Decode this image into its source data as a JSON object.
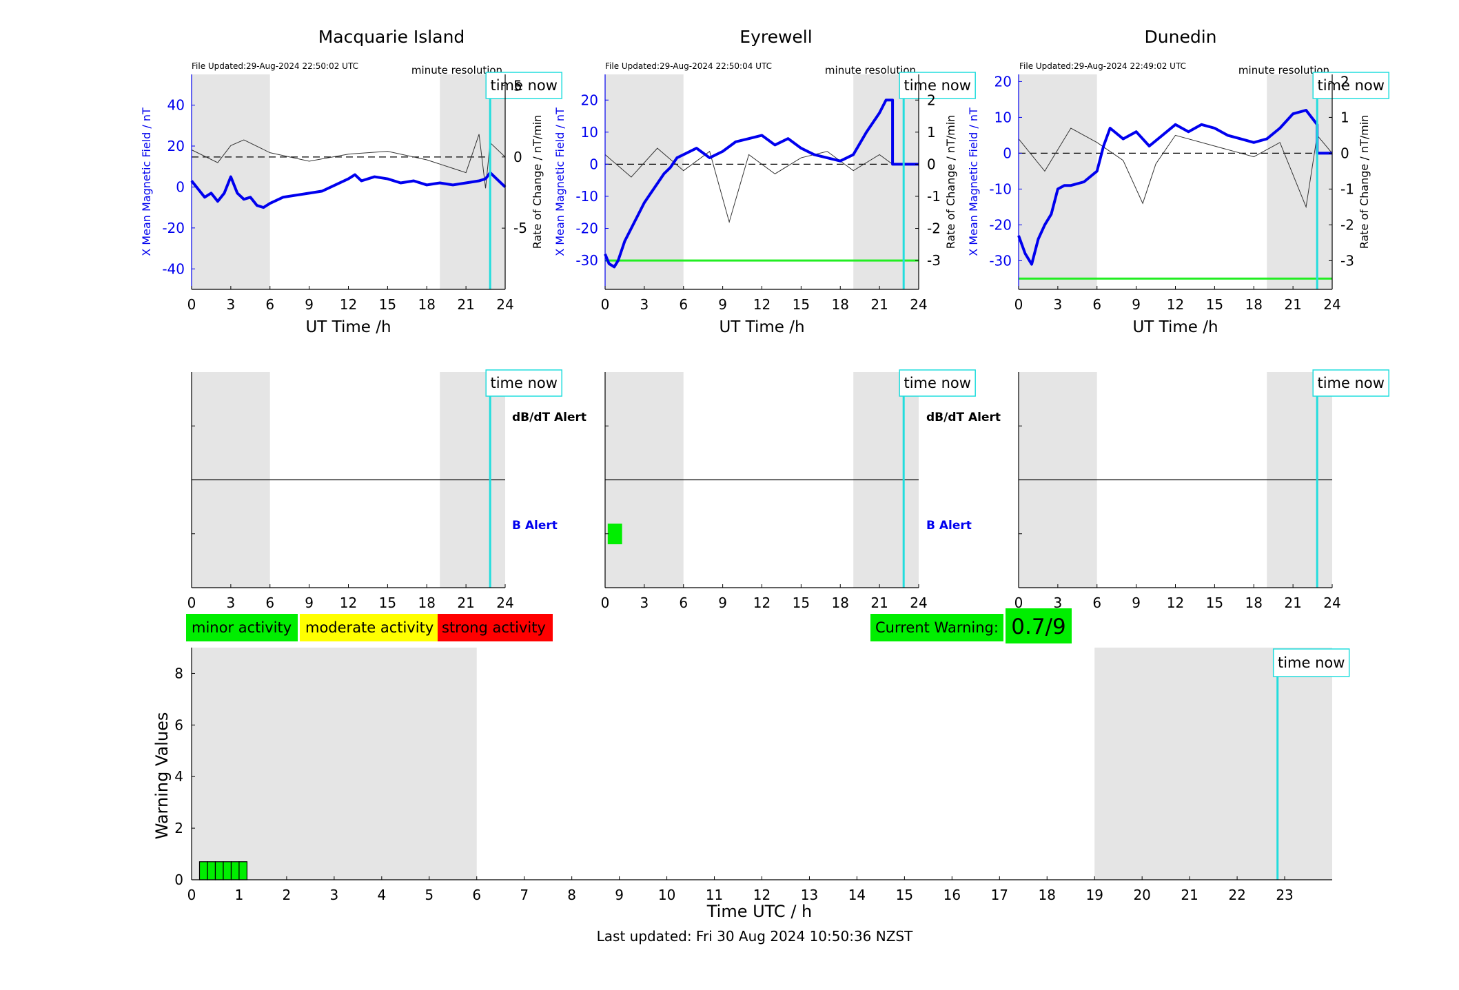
{
  "colors": {
    "shade": "#e5e5e5",
    "field_line": "#0000ee",
    "rate_line": "#333333",
    "time_now": "#22dddd",
    "threshold": "#22ee22",
    "minor": "#00ee00",
    "moderate": "#ffff00",
    "strong": "#ff0000",
    "alert_blue": "#0000ee",
    "text": "#000000"
  },
  "labels": {
    "time_now": "time now",
    "minute_resolution": "minute resolution",
    "dbdt_alert": "dB/dT Alert",
    "b_alert": "B Alert",
    "left_axis": "X Mean Magnetic Field / nT",
    "right_axis": "Rate of Change / nT/min",
    "x_axis": "UT Time /h"
  },
  "legend": [
    {
      "label": "minor activity",
      "color": "#00ee00"
    },
    {
      "label": "moderate activity",
      "color": "#ffff00"
    },
    {
      "label": "strong activity",
      "color": "#ff0000"
    }
  ],
  "current_warning": {
    "label": "Current Warning:",
    "value": "0.7/9"
  },
  "footer": {
    "last_updated": "Last updated: Fri 30 Aug 2024 10:50:36 NZST"
  },
  "chart_data": [
    {
      "type": "line",
      "title": "Macquarie Island",
      "file_updated": "File Updated:29-Aug-2024 22:50:02 UTC",
      "xlabel": "UT Time /h",
      "ylabel": "X Mean Magnetic Field / nT",
      "y2label": "Rate of Change / nT/min",
      "xlim": [
        0,
        24
      ],
      "ylim": [
        -50,
        55
      ],
      "y2lim": [
        -9.3,
        5.8
      ],
      "xticks": [
        0,
        3,
        6,
        9,
        12,
        15,
        18,
        21,
        24
      ],
      "yticks": [
        -40,
        -20,
        0,
        20,
        40
      ],
      "y2ticks": [
        -5,
        0,
        5
      ],
      "shaded_hours": [
        [
          0,
          6
        ],
        [
          19,
          24
        ]
      ],
      "time_now": 22.85,
      "threshold": null,
      "field_series": {
        "name": "X Mean Magnetic Field",
        "x": [
          0,
          0.5,
          1,
          1.5,
          2,
          2.5,
          3,
          3.5,
          4,
          4.5,
          5,
          5.5,
          6,
          7,
          8,
          9,
          10,
          11,
          12,
          12.5,
          13,
          14,
          15,
          16,
          17,
          18,
          19,
          20,
          21,
          22,
          22.5,
          22.85,
          24
        ],
        "y": [
          3,
          -1,
          -5,
          -3,
          -7,
          -3,
          5,
          -3,
          -6,
          -5,
          -9,
          -10,
          -8,
          -5,
          -4,
          -3,
          -2,
          1,
          4,
          6,
          3,
          5,
          4,
          2,
          3,
          1,
          2,
          1,
          2,
          3,
          4,
          7,
          0
        ]
      },
      "rate_series": {
        "name": "Rate of Change",
        "x": [
          0,
          2,
          3,
          4,
          6,
          9,
          12,
          15,
          18,
          20,
          21,
          22,
          22.5,
          22.85,
          24
        ],
        "y": [
          0.5,
          -0.4,
          0.8,
          1.2,
          0.3,
          -0.3,
          0.2,
          0.4,
          -0.2,
          -0.8,
          -1.1,
          1.6,
          -2.2,
          1.0,
          0
        ]
      }
    },
    {
      "type": "line",
      "title": "Eyrewell",
      "file_updated": "File Updated:29-Aug-2024 22:50:04 UTC",
      "xlabel": "UT Time /h",
      "ylabel": "X Mean Magnetic Field / nT",
      "y2label": "Rate of Change / nT/min",
      "xlim": [
        0,
        24
      ],
      "ylim": [
        -39,
        28
      ],
      "y2lim": [
        -3.9,
        2.8
      ],
      "xticks": [
        0,
        3,
        6,
        9,
        12,
        15,
        18,
        21,
        24
      ],
      "yticks": [
        -30,
        -20,
        -10,
        0,
        10,
        20
      ],
      "y2ticks": [
        -3,
        -2,
        -1,
        0,
        1,
        2
      ],
      "shaded_hours": [
        [
          0,
          6
        ],
        [
          19,
          24
        ]
      ],
      "time_now": 22.85,
      "threshold": -30,
      "field_series": {
        "name": "X Mean Magnetic Field",
        "x": [
          0,
          0.3,
          0.7,
          1,
          1.5,
          2,
          2.5,
          3,
          3.5,
          4,
          4.5,
          5,
          5.5,
          6,
          7,
          8,
          9,
          10,
          11,
          12,
          13,
          14,
          15,
          16,
          17,
          18,
          19,
          20,
          21,
          21.5,
          22,
          22,
          24
        ],
        "y": [
          -28,
          -31,
          -32,
          -30,
          -24,
          -20,
          -16,
          -12,
          -9,
          -6,
          -3,
          -1,
          2,
          3,
          5,
          2,
          4,
          7,
          8,
          9,
          6,
          8,
          5,
          3,
          2,
          1,
          3,
          10,
          16,
          20,
          20,
          0,
          0
        ]
      },
      "rate_series": {
        "name": "Rate of Change",
        "x": [
          0,
          2,
          4,
          6,
          8,
          9.5,
          11,
          13,
          15,
          17,
          19,
          21,
          22,
          24
        ],
        "y": [
          0.3,
          -0.4,
          0.5,
          -0.2,
          0.4,
          -1.8,
          0.3,
          -0.3,
          0.2,
          0.4,
          -0.2,
          0.3,
          0,
          0
        ]
      }
    },
    {
      "type": "line",
      "title": "Dunedin",
      "file_updated": "File Updated:29-Aug-2024 22:49:02 UTC",
      "xlabel": "UT Time /h",
      "ylabel": "X Mean Magnetic Field / nT",
      "y2label": "Rate of Change / nT/min",
      "xlim": [
        0,
        24
      ],
      "ylim": [
        -38,
        22
      ],
      "y2lim": [
        -3.8,
        2.2
      ],
      "xticks": [
        0,
        3,
        6,
        9,
        12,
        15,
        18,
        21,
        24
      ],
      "yticks": [
        -30,
        -20,
        -10,
        0,
        10,
        20
      ],
      "y2ticks": [
        -3,
        -2,
        -1,
        0,
        1,
        2
      ],
      "shaded_hours": [
        [
          0,
          6
        ],
        [
          19,
          24
        ]
      ],
      "time_now": 22.85,
      "threshold": -35,
      "field_series": {
        "name": "X Mean Magnetic Field",
        "x": [
          0,
          0.5,
          1,
          1.5,
          2,
          2.5,
          3,
          3.5,
          4,
          5,
          6,
          6.5,
          7,
          8,
          9,
          10,
          11,
          12,
          13,
          14,
          15,
          16,
          17,
          18,
          19,
          20,
          20.5,
          21,
          22,
          22.85,
          22.85,
          24
        ],
        "y": [
          -23,
          -28,
          -31,
          -24,
          -20,
          -17,
          -10,
          -9,
          -9,
          -8,
          -5,
          2,
          7,
          4,
          6,
          2,
          5,
          8,
          6,
          8,
          7,
          5,
          4,
          3,
          4,
          7,
          9,
          11,
          12,
          8,
          0,
          0
        ]
      },
      "rate_series": {
        "name": "Rate of Change",
        "x": [
          0,
          2,
          4,
          6,
          8,
          9.5,
          10.5,
          12,
          15,
          18,
          20,
          21,
          22,
          22.85,
          24
        ],
        "y": [
          0.4,
          -0.5,
          0.7,
          0.3,
          -0.2,
          -1.4,
          -0.3,
          0.5,
          0.2,
          -0.1,
          0.3,
          -0.6,
          -1.5,
          0.5,
          0
        ]
      }
    },
    {
      "type": "bar",
      "title": "",
      "xlabel": "",
      "ylabel": "",
      "xlim": [
        0,
        24
      ],
      "xticks": [
        0,
        3,
        6,
        9,
        12,
        15,
        18,
        21,
        24
      ],
      "shaded_hours": [
        [
          0,
          6
        ],
        [
          19,
          24
        ]
      ],
      "time_now": 22.85,
      "dbdt_alert": [],
      "b_alert": []
    },
    {
      "type": "bar",
      "title": "",
      "xlabel": "",
      "ylabel": "",
      "xlim": [
        0,
        24
      ],
      "xticks": [
        0,
        3,
        6,
        9,
        12,
        15,
        18,
        21,
        24
      ],
      "shaded_hours": [
        [
          0,
          6
        ],
        [
          19,
          24
        ]
      ],
      "time_now": 22.85,
      "dbdt_alert": [],
      "b_alert": [
        [
          0.2,
          1.3
        ]
      ]
    },
    {
      "type": "bar",
      "title": "",
      "xlabel": "",
      "ylabel": "",
      "xlim": [
        0,
        24
      ],
      "xticks": [
        0,
        3,
        6,
        9,
        12,
        15,
        18,
        21,
        24
      ],
      "shaded_hours": [
        [
          0,
          6
        ],
        [
          19,
          24
        ]
      ],
      "time_now": 22.85,
      "dbdt_alert": [],
      "b_alert": []
    },
    {
      "type": "bar",
      "title": "",
      "xlabel": "Time UTC / h",
      "ylabel": "Warning Values",
      "xlim": [
        0,
        24
      ],
      "ylim": [
        0,
        9
      ],
      "xticks": [
        0,
        1,
        2,
        3,
        4,
        5,
        6,
        7,
        8,
        9,
        10,
        11,
        12,
        13,
        14,
        15,
        16,
        17,
        18,
        19,
        20,
        21,
        22,
        23
      ],
      "yticks": [
        0,
        2,
        4,
        6,
        8
      ],
      "shaded_hours": [
        [
          0,
          6
        ],
        [
          19,
          24
        ]
      ],
      "time_now": 22.85,
      "bars_x": [
        0.25,
        0.417,
        0.583,
        0.75,
        0.917,
        1.083
      ],
      "bar_width_h": 0.1667,
      "values": [
        0.7,
        0.7,
        0.7,
        0.7,
        0.7,
        0.7
      ]
    }
  ]
}
